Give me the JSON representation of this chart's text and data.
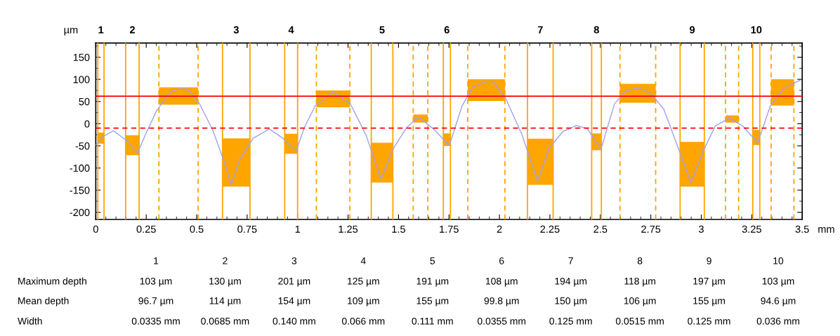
{
  "chart_data": {
    "type": "line",
    "xlabel": "mm",
    "ylabel": "µm",
    "xlim": [
      0,
      3.5
    ],
    "xticks": [
      0,
      0.25,
      0.5,
      0.75,
      1,
      1.25,
      1.5,
      1.75,
      2,
      2.25,
      2.5,
      2.75,
      3,
      3.25,
      3.5
    ],
    "ylim": [
      -216,
      182
    ],
    "yticks": [
      -200,
      -150,
      -100,
      -50,
      0,
      50,
      100,
      150
    ],
    "grid": false,
    "legend": false,
    "series": [
      {
        "type": "bar",
        "color": "#ffa500",
        "x": [
          0.0255,
          0.1815,
          0.41,
          0.696,
          0.968,
          1.176,
          1.4185,
          1.609,
          1.7395,
          1.935,
          2.2025,
          2.481,
          2.6855,
          2.955,
          3.1525,
          3.2725,
          3.4025
        ],
        "base": [
          -45,
          -71,
          43,
          -142,
          -68,
          37,
          -133,
          2.5,
          -50,
          51,
          -138,
          -60,
          47,
          -142,
          2.5,
          -48,
          41
        ],
        "values": [
          25,
          45,
          39,
          109,
          45,
          38,
          90,
          18,
          28,
          49,
          104,
          38,
          43,
          101,
          16,
          34,
          59
        ]
      },
      {
        "color": "#a0a0f0",
        "x": [
          0,
          0.033,
          0.087,
          0.147,
          0.207,
          0.247,
          0.3,
          0.367,
          0.407,
          0.453,
          0.513,
          0.58,
          0.633,
          0.671,
          0.713,
          0.78,
          0.86,
          0.927,
          0.993,
          1.033,
          1.087,
          1.173,
          1.26,
          1.34,
          1.413,
          1.473,
          1.54,
          1.593,
          1.611,
          1.678,
          1.752,
          1.814,
          1.868,
          1.935,
          1.969,
          2.03,
          2.111,
          2.189,
          2.246,
          2.314,
          2.381,
          2.435,
          2.503,
          2.57,
          2.624,
          2.685,
          2.746,
          2.814,
          2.881,
          2.949,
          3.01,
          3.07,
          3.138,
          3.205,
          3.28,
          3.341,
          3.408,
          3.489
        ],
        "values": [
          -48,
          -30,
          -16,
          -36,
          -66,
          -24,
          28,
          71,
          78,
          78,
          46,
          -15,
          -82,
          -138,
          -82,
          -33,
          -12,
          -33,
          -62,
          -9,
          40,
          71,
          46,
          -27,
          -125,
          -57,
          -9,
          13,
          11,
          -14,
          -49,
          39,
          83,
          95,
          95,
          58,
          -24,
          -130,
          -55,
          -18,
          -4,
          -11,
          -58,
          45,
          73,
          81,
          70,
          33,
          -49,
          -133,
          -61,
          -5,
          12,
          -5,
          -43,
          39,
          80,
          98
        ]
      }
    ],
    "ref_lines": [
      {
        "axis": "y",
        "value": 62,
        "color": "#ff0000",
        "line_style": "solid"
      },
      {
        "axis": "y",
        "value": -10,
        "color": "#ff0000",
        "line_style": "dashed"
      },
      {
        "axis": "x",
        "value": 0.01,
        "color": "#ffa500",
        "line_style": "solid"
      },
      {
        "axis": "x",
        "value": 0.041,
        "color": "#ffa500",
        "line_style": "solid"
      },
      {
        "axis": "x",
        "value": 0.148,
        "color": "#ffa500",
        "line_style": "solid"
      },
      {
        "axis": "x",
        "value": 0.215,
        "color": "#ffa500",
        "line_style": "solid"
      },
      {
        "axis": "x",
        "value": 0.313,
        "color": "#ffa500",
        "line_style": "dashed"
      },
      {
        "axis": "x",
        "value": 0.507,
        "color": "#ffa500",
        "line_style": "dashed"
      },
      {
        "axis": "x",
        "value": 0.628,
        "color": "#ffa500",
        "line_style": "solid"
      },
      {
        "axis": "x",
        "value": 0.764,
        "color": "#ffa500",
        "line_style": "solid"
      },
      {
        "axis": "x",
        "value": 0.936,
        "color": "#ffa500",
        "line_style": "solid"
      },
      {
        "axis": "x",
        "value": 1.0,
        "color": "#ffa500",
        "line_style": "solid"
      },
      {
        "axis": "x",
        "value": 1.093,
        "color": "#ffa500",
        "line_style": "dashed"
      },
      {
        "axis": "x",
        "value": 1.259,
        "color": "#ffa500",
        "line_style": "dashed"
      },
      {
        "axis": "x",
        "value": 1.365,
        "color": "#ffa500",
        "line_style": "solid"
      },
      {
        "axis": "x",
        "value": 1.472,
        "color": "#ffa500",
        "line_style": "solid"
      },
      {
        "axis": "x",
        "value": 1.573,
        "color": "#ffa500",
        "line_style": "dashed"
      },
      {
        "axis": "x",
        "value": 1.645,
        "color": "#ffa500",
        "line_style": "dashed"
      },
      {
        "axis": "x",
        "value": 1.722,
        "color": "#ffa500",
        "line_style": "solid"
      },
      {
        "axis": "x",
        "value": 1.757,
        "color": "#ffa500",
        "line_style": "solid"
      },
      {
        "axis": "x",
        "value": 1.843,
        "color": "#ffa500",
        "line_style": "dashed"
      },
      {
        "axis": "x",
        "value": 2.027,
        "color": "#ffa500",
        "line_style": "dashed"
      },
      {
        "axis": "x",
        "value": 2.139,
        "color": "#ffa500",
        "line_style": "solid"
      },
      {
        "axis": "x",
        "value": 2.266,
        "color": "#ffa500",
        "line_style": "solid"
      },
      {
        "axis": "x",
        "value": 2.457,
        "color": "#ffa500",
        "line_style": "solid"
      },
      {
        "axis": "x",
        "value": 2.505,
        "color": "#ffa500",
        "line_style": "solid"
      },
      {
        "axis": "x",
        "value": 2.597,
        "color": "#ffa500",
        "line_style": "dashed"
      },
      {
        "axis": "x",
        "value": 2.774,
        "color": "#ffa500",
        "line_style": "dashed"
      },
      {
        "axis": "x",
        "value": 2.895,
        "color": "#ffa500",
        "line_style": "solid"
      },
      {
        "axis": "x",
        "value": 3.015,
        "color": "#ffa500",
        "line_style": "solid"
      },
      {
        "axis": "x",
        "value": 3.12,
        "color": "#ffa500",
        "line_style": "dashed"
      },
      {
        "axis": "x",
        "value": 3.185,
        "color": "#ffa500",
        "line_style": "dashed"
      },
      {
        "axis": "x",
        "value": 3.255,
        "color": "#ffa500",
        "line_style": "solid"
      },
      {
        "axis": "x",
        "value": 3.29,
        "color": "#ffa500",
        "line_style": "solid"
      },
      {
        "axis": "x",
        "value": 3.346,
        "color": "#ffa500",
        "line_style": "dashed"
      },
      {
        "axis": "x",
        "value": 3.459,
        "color": "#ffa500",
        "line_style": "dashed"
      }
    ],
    "annotations": [
      "1",
      "2",
      "3",
      "4",
      "5",
      "6",
      "7",
      "8",
      "9",
      "10",
      "1",
      "2",
      "3",
      "4",
      "5",
      "6",
      "7",
      "8",
      "9",
      "10",
      "Maximum depth",
      "103 µm",
      "130 µm",
      "201 µm",
      "125 µm",
      "191 µm",
      "108 µm",
      "194 µm",
      "118 µm",
      "197 µm",
      "103 µm",
      "Mean depth",
      "96.7 µm",
      "114 µm",
      "154 µm",
      "109 µm",
      "155 µm",
      "99.8 µm",
      "150 µm",
      "106 µm",
      "155 µm",
      "94.6 µm",
      "Width",
      "0.0335 mm",
      "0.0685 mm",
      "0.140 mm",
      "0.066 mm",
      "0.111 mm",
      "0.0355 mm",
      "0.125 mm",
      "0.0515 mm",
      "0.125 mm",
      "0.036 mm"
    ]
  }
}
